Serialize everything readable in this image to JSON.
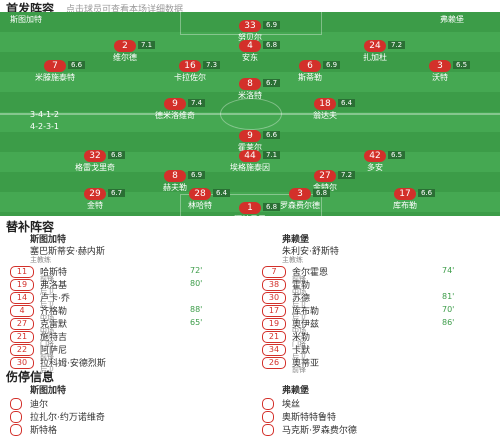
{
  "header": {
    "title": "首发阵容",
    "subtitle": "点击球员可查看本场详细数据"
  },
  "pitch": {
    "home": {
      "name": "斯图加特",
      "formation": "3-4-1-2",
      "players": [
        {
          "number": 33,
          "name": "努贝尔",
          "rating": 6.9
        },
        {
          "number": 2,
          "name": "维尔德",
          "rating": 7.1
        },
        {
          "number": 4,
          "name": "安东",
          "rating": 6.8
        },
        {
          "number": 24,
          "name": "扎加杜",
          "rating": 7.2
        },
        {
          "number": 7,
          "name": "米滕施泰特",
          "rating": 6.6
        },
        {
          "number": 16,
          "name": "卡拉佐尔",
          "rating": 7.3
        },
        {
          "number": 6,
          "name": "斯蒂勒",
          "rating": 6.9
        },
        {
          "number": 3,
          "name": "沃特",
          "rating": 6.5
        },
        {
          "number": 8,
          "name": "米洛特",
          "rating": 6.7
        },
        {
          "number": 9,
          "name": "德米洛维奇",
          "rating": 7.4
        },
        {
          "number": 18,
          "name": "翁达夫",
          "rating": 6.4
        }
      ]
    },
    "away": {
      "name": "弗赖堡",
      "formation": "4-2-3-1",
      "players": [
        {
          "number": 9,
          "name": "霍莱尔",
          "rating": 6.6
        },
        {
          "number": 32,
          "name": "格雷戈里奇",
          "rating": 6.8
        },
        {
          "number": 44,
          "name": "埃格施泰因",
          "rating": 7.1
        },
        {
          "number": 42,
          "name": "多安",
          "rating": 6.5
        },
        {
          "number": 8,
          "name": "赫夫勒",
          "rating": 6.9
        },
        {
          "number": 27,
          "name": "金特尔",
          "rating": 7.2
        },
        {
          "number": 29,
          "name": "金特",
          "rating": 6.7
        },
        {
          "number": 28,
          "name": "林哈特",
          "rating": 6.4
        },
        {
          "number": 3,
          "name": "罗森费尔德",
          "rating": 6.8
        },
        {
          "number": 17,
          "name": "库布勒",
          "rating": 6.6
        },
        {
          "number": 1,
          "name": "阿特贝里",
          "rating": 6.8
        }
      ]
    }
  },
  "subs": {
    "title": "替补阵容",
    "home": {
      "team": "斯图加特",
      "coach": "塞巴斯蒂安·赫内斯",
      "coach_role": "主教练",
      "players": [
        {
          "number": 11,
          "name": "哈斯特",
          "position": "前锋",
          "minute": "72'"
        },
        {
          "number": 19,
          "name": "弗洛基",
          "position": "后卫",
          "minute": "80'"
        },
        {
          "number": 14,
          "name": "卢卡·乔",
          "position": "后卫"
        },
        {
          "number": 4,
          "name": "齐格勒",
          "position": "中场",
          "minute": "88'"
        },
        {
          "number": 27,
          "name": "克雷默",
          "position": "中场",
          "minute": "65'"
        },
        {
          "number": 21,
          "name": "施特吉",
          "position": "门将"
        },
        {
          "number": 22,
          "name": "阿萨尼",
          "position": "前锋"
        },
        {
          "number": 30,
          "name": "拉科姆·安德烈斯",
          "position": "后卫"
        }
      ]
    },
    "away": {
      "team": "弗赖堡",
      "coach": "朱利安·舒斯特",
      "coach_role": "主教练",
      "players": [
        {
          "number": 7,
          "name": "舍尔霍恩",
          "position": "前锋",
          "minute": "74'"
        },
        {
          "number": 38,
          "name": "霍勒",
          "position": "中场"
        },
        {
          "number": 30,
          "name": "苏德",
          "position": "后卫",
          "minute": "81'"
        },
        {
          "number": 17,
          "name": "库布勒",
          "position": "后卫",
          "minute": "70'"
        },
        {
          "number": 19,
          "name": "奥伊兹",
          "position": "中场",
          "minute": "86'"
        },
        {
          "number": 21,
          "name": "米勒",
          "position": "门将"
        },
        {
          "number": 34,
          "name": "卡默",
          "position": "后卫"
        },
        {
          "number": 26,
          "name": "奥蒂亚",
          "position": "前锋"
        }
      ]
    }
  },
  "injuries": {
    "title": "伤停信息",
    "home": {
      "team": "斯图加特",
      "players": [
        "迪尔",
        "拉扎尔·约万诺维奇",
        "斯特格"
      ]
    },
    "away": {
      "team": "弗赖堡",
      "players": [
        "埃丝",
        "奥斯特特鲁特",
        "马克斯·罗森费尔德"
      ]
    }
  }
}
